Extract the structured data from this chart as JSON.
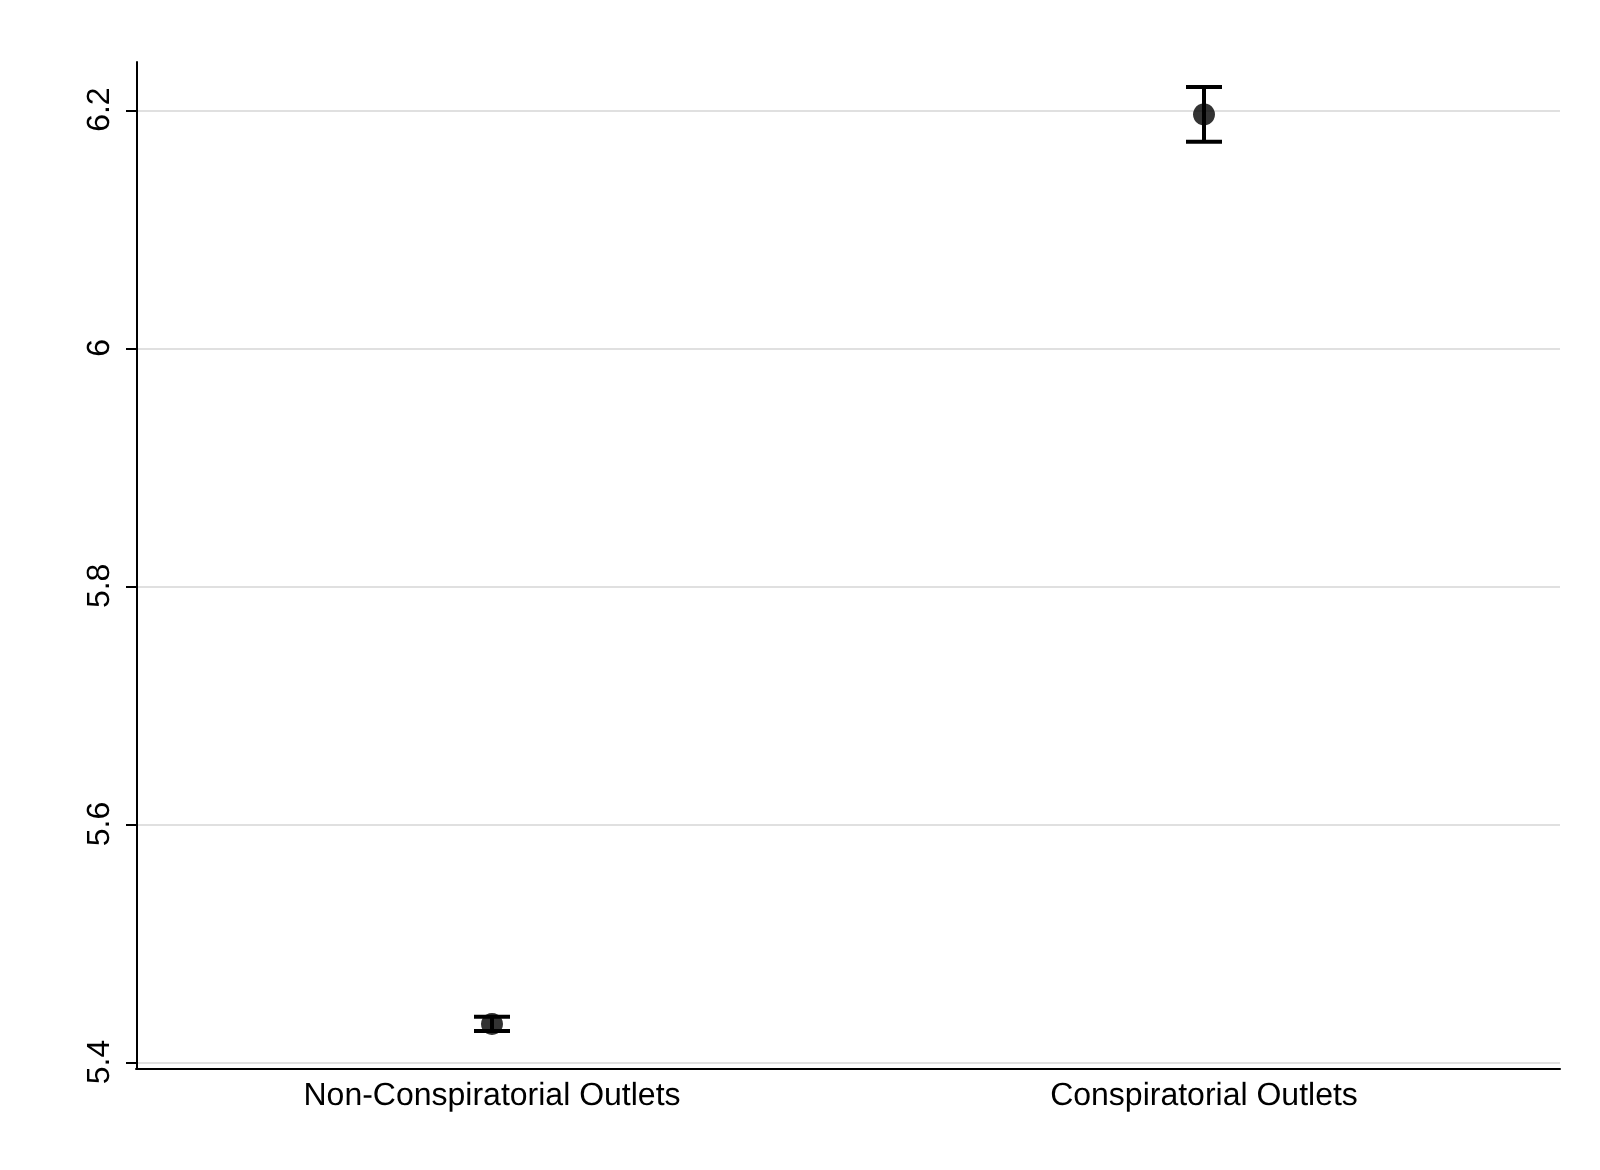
{
  "chart_data": {
    "type": "scatter",
    "categories": [
      "Non-Conspiratorial Outlets",
      "Conspiratorial Outlets"
    ],
    "values": [
      5.432,
      6.196
    ],
    "errors": [
      0.006,
      0.023
    ],
    "color": "#000000",
    "marker": "circle",
    "ylim": [
      5.395,
      6.24
    ],
    "yticks": [
      5.4,
      5.6,
      5.8,
      6,
      6.2
    ],
    "grid": "y"
  }
}
